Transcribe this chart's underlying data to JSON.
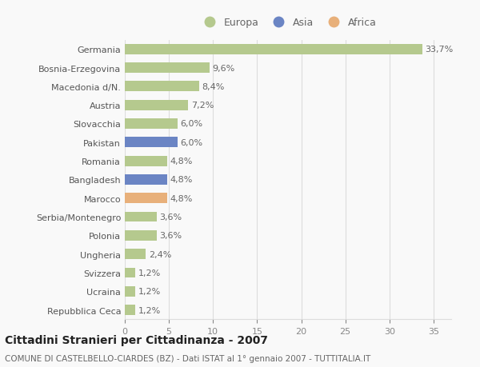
{
  "countries": [
    "Germania",
    "Bosnia-Erzegovina",
    "Macedonia d/N.",
    "Austria",
    "Slovacchia",
    "Pakistan",
    "Romania",
    "Bangladesh",
    "Marocco",
    "Serbia/Montenegro",
    "Polonia",
    "Ungheria",
    "Svizzera",
    "Ucraina",
    "Repubblica Ceca"
  ],
  "values": [
    33.7,
    9.6,
    8.4,
    7.2,
    6.0,
    6.0,
    4.8,
    4.8,
    4.8,
    3.6,
    3.6,
    2.4,
    1.2,
    1.2,
    1.2
  ],
  "labels": [
    "33,7%",
    "9,6%",
    "8,4%",
    "7,2%",
    "6,0%",
    "6,0%",
    "4,8%",
    "4,8%",
    "4,8%",
    "3,6%",
    "3,6%",
    "2,4%",
    "1,2%",
    "1,2%",
    "1,2%"
  ],
  "continents": [
    "Europa",
    "Europa",
    "Europa",
    "Europa",
    "Europa",
    "Asia",
    "Europa",
    "Asia",
    "Africa",
    "Europa",
    "Europa",
    "Europa",
    "Europa",
    "Europa",
    "Europa"
  ],
  "colors": {
    "Europa": "#b5c98e",
    "Asia": "#6b85c4",
    "Africa": "#e8b07a"
  },
  "xlim": [
    0,
    37
  ],
  "xticks": [
    0,
    5,
    10,
    15,
    20,
    25,
    30,
    35
  ],
  "title": "Cittadini Stranieri per Cittadinanza - 2007",
  "subtitle": "COMUNE DI CASTELBELLO-CIARDES (BZ) - Dati ISTAT al 1° gennaio 2007 - TUTTITALIA.IT",
  "background_color": "#f9f9f9",
  "grid_color": "#dddddd",
  "bar_height": 0.55,
  "label_fontsize": 8,
  "tick_fontsize": 8,
  "title_fontsize": 10,
  "subtitle_fontsize": 7.5
}
